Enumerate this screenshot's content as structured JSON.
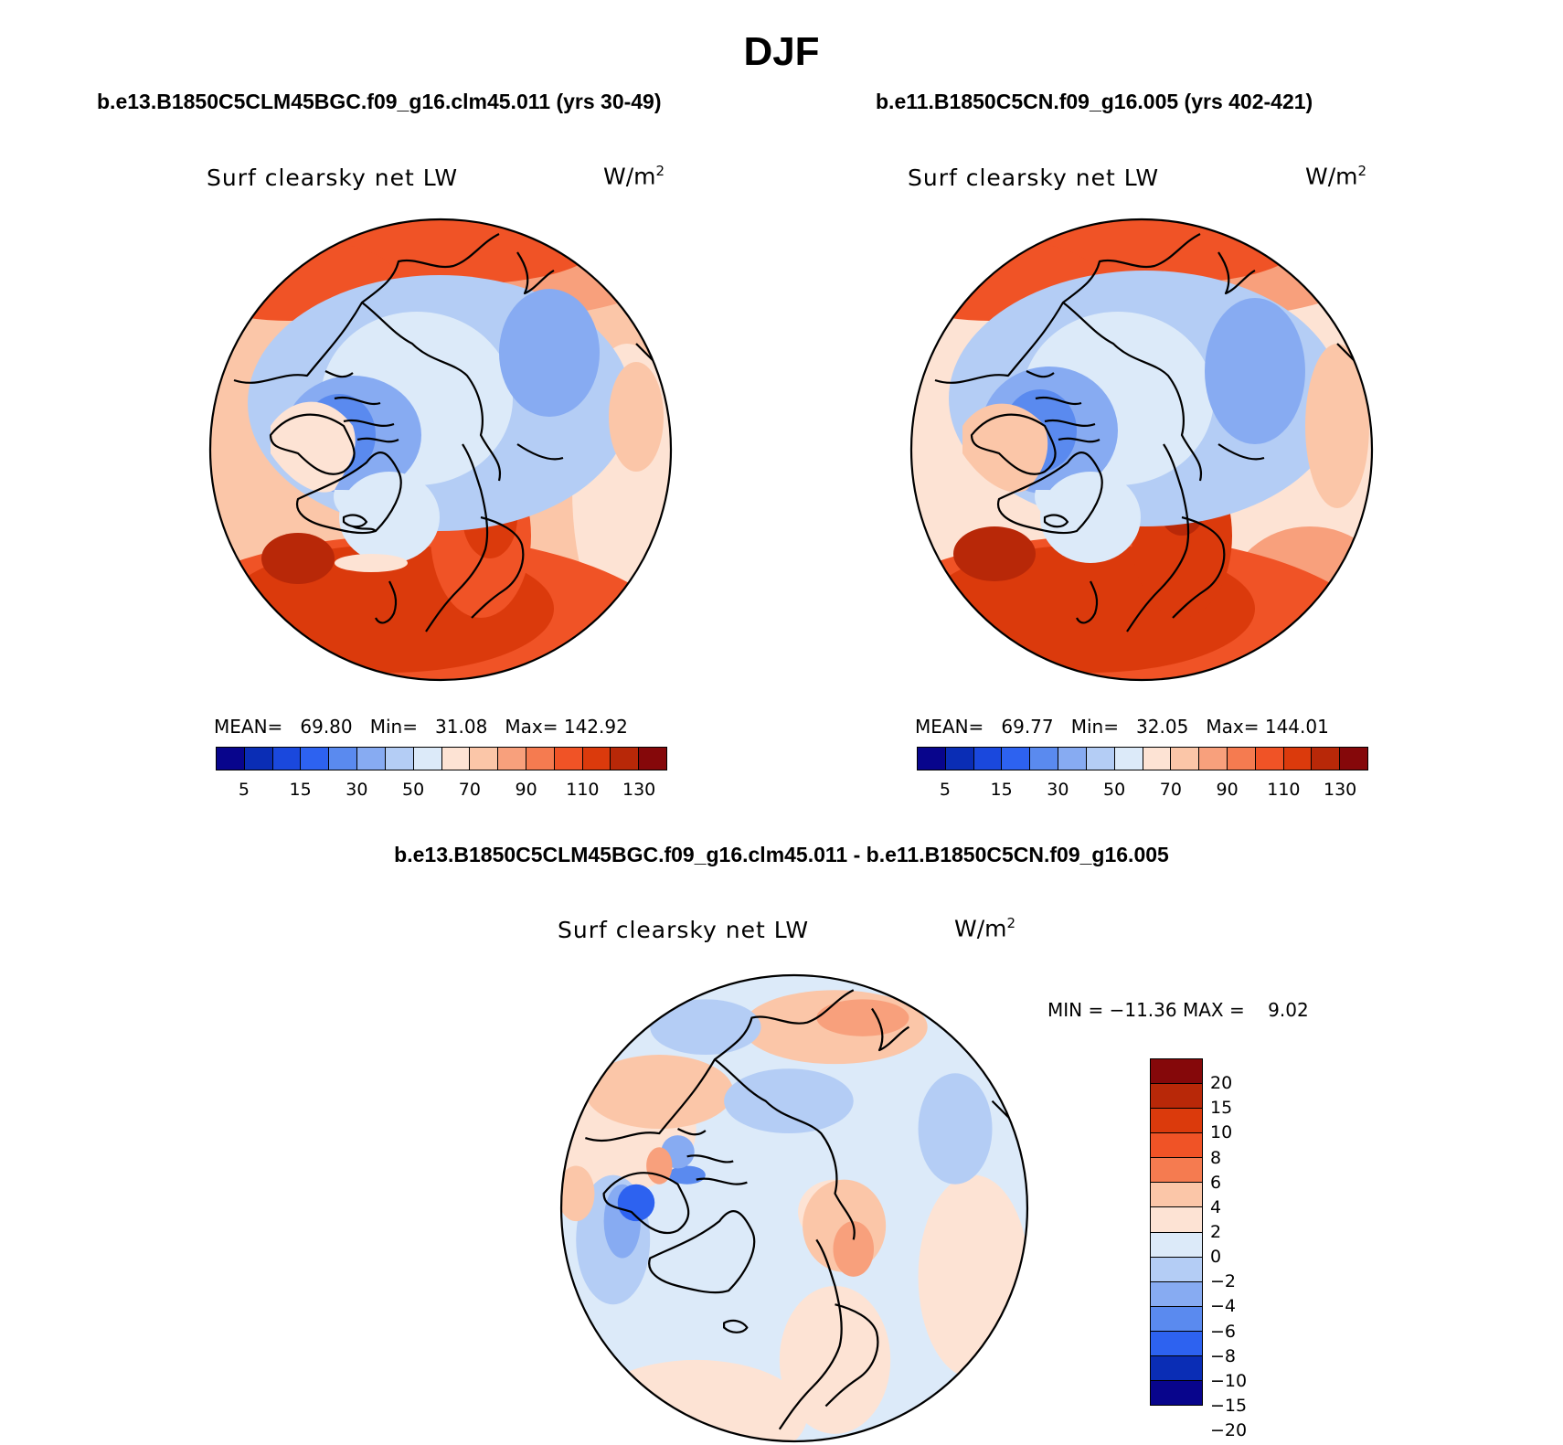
{
  "title": "DJF",
  "panels": [
    {
      "case": "b.e13.B1850C5CLM45BGC.f09_g16.clm45.011 (yrs 30-49)",
      "variable": "Surf clearsky net LW",
      "units": "W/m",
      "units_exp": "2",
      "mean_label": "MEAN=",
      "mean": "69.80",
      "min_label": "Min=",
      "min": "31.08",
      "max_label": "Max=",
      "max": "142.92"
    },
    {
      "case": "b.e11.B1850C5CN.f09_g16.005 (yrs 402-421)",
      "variable": "Surf clearsky net LW",
      "units": "W/m",
      "units_exp": "2",
      "mean_label": "MEAN=",
      "mean": "69.77",
      "min_label": "Min=",
      "min": "32.05",
      "max_label": "Max=",
      "max": "144.01"
    }
  ],
  "diff": {
    "title": "b.e13.B1850C5CLM45BGC.f09_g16.clm45.011 - b.e11.B1850C5CN.f09_g16.005",
    "variable": "Surf clearsky net LW",
    "units": "W/m",
    "units_exp": "2",
    "minmax": "MIN = −11.36 MAX =    9.02"
  },
  "colorbar_abs": {
    "colors": [
      "#08058c",
      "#0a2db5",
      "#1a48dd",
      "#2d62f0",
      "#5a8aef",
      "#87abf2",
      "#b4cdf5",
      "#dceaf9",
      "#fde3d4",
      "#fbc6a8",
      "#f8a07c",
      "#f57b50",
      "#f05326",
      "#db3a0c",
      "#b82808",
      "#85080a"
    ],
    "ticks": [
      "5",
      "15",
      "30",
      "50",
      "70",
      "90",
      "110",
      "130"
    ]
  },
  "colorbar_diff": {
    "colors": [
      "#85080a",
      "#b82808",
      "#db3a0c",
      "#f05326",
      "#f57b50",
      "#fbc6a8",
      "#fde3d4",
      "#dceaf9",
      "#b4cdf5",
      "#87abf2",
      "#5a8aef",
      "#2d62f0",
      "#0a2db5",
      "#08058c"
    ],
    "ticks": [
      "20",
      "15",
      "10",
      "8",
      "6",
      "4",
      "2",
      "0",
      "−2",
      "−4",
      "−6",
      "−8",
      "−10",
      "−15",
      "−20"
    ]
  }
}
